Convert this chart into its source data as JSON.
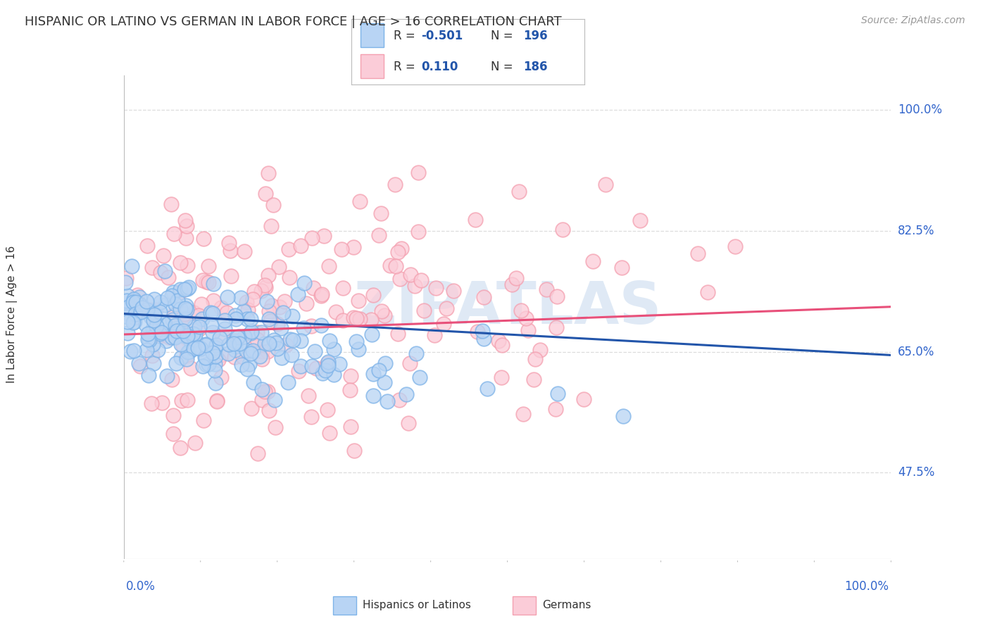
{
  "title": "HISPANIC OR LATINO VS GERMAN IN LABOR FORCE | AGE > 16 CORRELATION CHART",
  "source": "Source: ZipAtlas.com",
  "ylabel": "In Labor Force | Age > 16",
  "ytick_labels": [
    "47.5%",
    "65.0%",
    "82.5%",
    "100.0%"
  ],
  "ytick_values": [
    0.475,
    0.65,
    0.825,
    1.0
  ],
  "r_blue": -0.501,
  "n_blue": 196,
  "r_pink": 0.11,
  "n_pink": 186,
  "blue_edge_color": "#7EB3E8",
  "pink_edge_color": "#F4A0B0",
  "blue_line_color": "#2255AA",
  "pink_line_color": "#E8507A",
  "blue_fill_color": "#B8D4F4",
  "pink_fill_color": "#FBCCD8",
  "title_color": "#333333",
  "source_color": "#999999",
  "axis_label_color": "#3366CC",
  "grid_color": "#DDDDDD",
  "background_color": "#FFFFFF",
  "xmin": 0.0,
  "xmax": 1.0,
  "ymin": 0.35,
  "ymax": 1.05,
  "blue_line_y0": 0.705,
  "blue_line_y1": 0.645,
  "pink_line_y0": 0.675,
  "pink_line_y1": 0.715
}
